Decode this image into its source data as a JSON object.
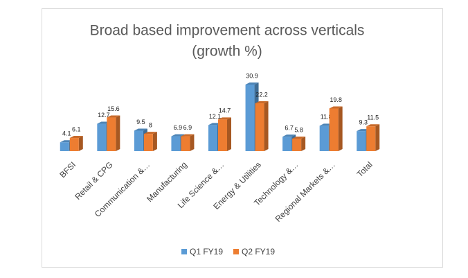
{
  "chart_data": {
    "type": "bar3d",
    "title": "Broad based improvement across verticals",
    "subtitle": "(growth %)",
    "categories": [
      "BFSI",
      "Retail & CPG",
      "Communication &…",
      "Manufacturing",
      "Life Science &…",
      "Energy & Utilities",
      "Technology &…",
      "Regional Markets &…",
      "Total"
    ],
    "series": [
      {
        "name": "Q1 FY19",
        "color": "#5b9bd5",
        "values": [
          4.1,
          12.7,
          9.5,
          6.9,
          12.1,
          30.9,
          6.7,
          11.8,
          9.3
        ]
      },
      {
        "name": "Q2 FY19",
        "color": "#ed7d31",
        "values": [
          6.1,
          15.6,
          8,
          6.9,
          14.7,
          22.2,
          5.8,
          19.8,
          11.5
        ]
      }
    ]
  }
}
